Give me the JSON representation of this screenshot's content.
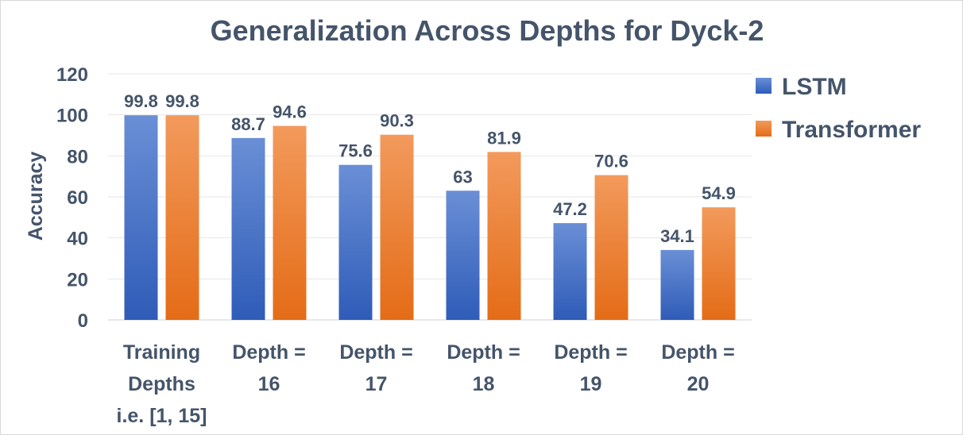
{
  "chart_data": {
    "type": "bar",
    "title": "Generalization Across Depths for Dyck-2",
    "xlabel": "",
    "ylabel": "Accuracy",
    "ylim": [
      0,
      120
    ],
    "yticks": [
      0,
      20,
      40,
      60,
      80,
      100,
      120
    ],
    "grid": true,
    "legend_position": "right",
    "categories": [
      [
        "Training",
        "Depths",
        "i.e. [1, 15]"
      ],
      [
        "Depth =",
        "16"
      ],
      [
        "Depth =",
        "17"
      ],
      [
        "Depth =",
        "18"
      ],
      [
        "Depth =",
        "19"
      ],
      [
        "Depth =",
        "20"
      ]
    ],
    "series": [
      {
        "name": "LSTM",
        "color": "#4472c4",
        "color_light": "#6a8fd6",
        "color_dark": "#2f5cb8",
        "values": [
          99.8,
          88.7,
          75.6,
          63,
          47.2,
          34.1
        ]
      },
      {
        "name": "Transformer",
        "color": "#ed7d31",
        "color_light": "#f29a5c",
        "color_dark": "#e46c17",
        "values": [
          99.8,
          94.6,
          90.3,
          81.9,
          70.6,
          54.9
        ]
      }
    ]
  }
}
